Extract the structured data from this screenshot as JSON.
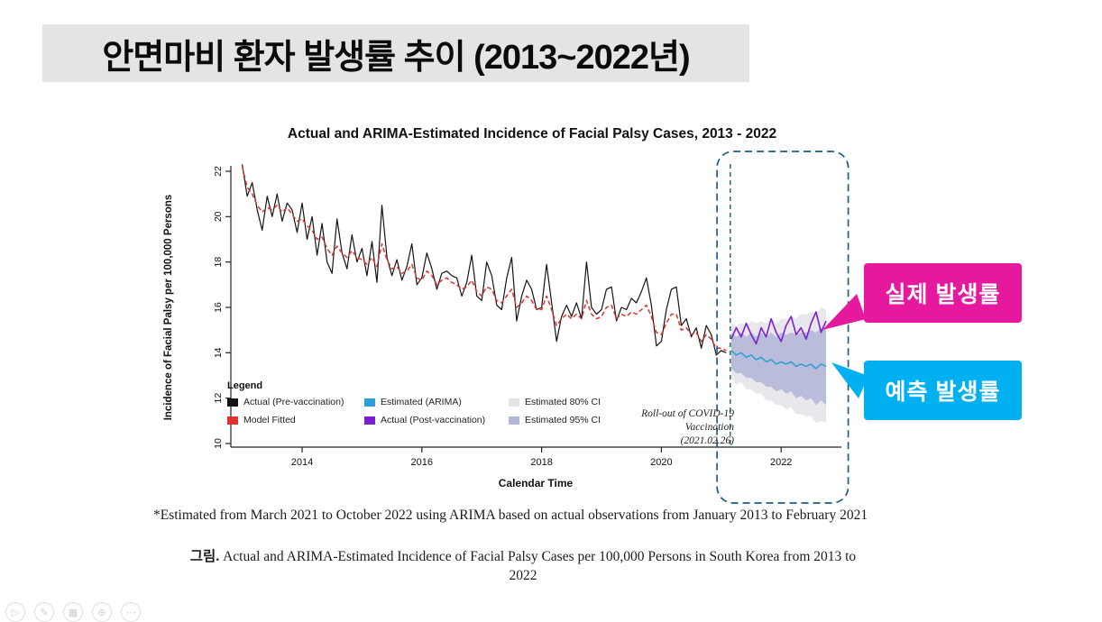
{
  "slide": {
    "title": "안면마비 환자 발생률 추이 (2013~2022년)"
  },
  "callouts": {
    "actual": {
      "label": "실제 발생률",
      "color": "#e6199e"
    },
    "predicted": {
      "label": "예측 발생률",
      "color": "#00b0f0"
    }
  },
  "chart_data": {
    "type": "line",
    "title": "Actual and ARIMA-Estimated Incidence of Facial Palsy Cases, 2013 - 2022",
    "xlabel": "Calendar Time",
    "ylabel": "Incidence of Facial Palsy per 100,000 Persons",
    "xlim": [
      2012.9,
      2023.1
    ],
    "ylim": [
      10,
      22.5
    ],
    "xticks": [
      2014,
      2016,
      2018,
      2020,
      2022
    ],
    "yticks": [
      10,
      12,
      14,
      16,
      18,
      20,
      22
    ],
    "legend_title": "Legend",
    "vline_x": 2021.15,
    "highlight_box": {
      "x_start": 2021.05,
      "x_end": 2023.0
    },
    "annotation": "Roll-out of COVID-19\nVaccination\n(2021.02.26)",
    "series": [
      {
        "name": "Actual (Pre-vaccination)",
        "color": "#141414",
        "style": "solid",
        "width": 1.2,
        "x_start": 2013.0,
        "x_step": 0.0833333,
        "values": [
          22.3,
          20.9,
          21.5,
          20.3,
          19.4,
          20.9,
          20.0,
          21.0,
          19.8,
          20.6,
          20.3,
          19.3,
          20.6,
          19.0,
          20.0,
          18.3,
          19.7,
          18.0,
          17.5,
          19.9,
          18.4,
          17.7,
          19.2,
          18.0,
          18.6,
          17.4,
          18.9,
          17.1,
          20.5,
          18.2,
          17.4,
          18.1,
          17.2,
          17.8,
          18.8,
          17.0,
          17.3,
          18.4,
          17.7,
          16.8,
          17.5,
          17.6,
          17.4,
          17.3,
          16.5,
          17.1,
          18.3,
          16.5,
          16.3,
          18.0,
          17.4,
          16.1,
          15.9,
          17.3,
          18.2,
          15.4,
          16.5,
          17.2,
          16.8,
          15.9,
          16.0,
          17.9,
          16.2,
          14.5,
          15.6,
          16.1,
          15.6,
          16.2,
          15.5,
          18.0,
          16.0,
          15.7,
          15.9,
          16.8,
          16.9,
          15.4,
          16.0,
          15.9,
          16.4,
          16.2,
          16.7,
          17.3,
          16.1,
          14.3,
          14.5,
          15.9,
          16.8,
          16.9,
          15.2,
          15.5,
          14.7,
          15.1,
          14.2,
          15.2,
          14.8,
          13.9,
          14.1,
          14.0
        ]
      },
      {
        "name": "Model Fitted",
        "color": "#e03131",
        "style": "dashed",
        "width": 1.5,
        "x_start": 2013.0,
        "x_step": 0.0833333,
        "values": [
          22.2,
          21.3,
          21.0,
          20.5,
          20.2,
          20.4,
          20.3,
          20.5,
          20.2,
          20.4,
          20.1,
          19.8,
          19.9,
          19.6,
          19.4,
          19.0,
          19.1,
          18.6,
          18.3,
          18.7,
          18.4,
          18.2,
          18.5,
          18.2,
          18.1,
          17.9,
          18.2,
          17.8,
          18.8,
          18.1,
          17.7,
          17.8,
          17.5,
          17.6,
          17.9,
          17.3,
          17.2,
          17.6,
          17.4,
          17.0,
          17.2,
          17.3,
          17.1,
          17.0,
          16.8,
          16.9,
          17.2,
          16.7,
          16.5,
          16.9,
          16.8,
          16.3,
          16.2,
          16.5,
          16.8,
          16.0,
          16.2,
          16.5,
          16.3,
          15.9,
          15.9,
          16.5,
          15.9,
          15.2,
          15.5,
          15.7,
          15.5,
          15.7,
          15.5,
          16.3,
          15.7,
          15.5,
          15.6,
          16.0,
          16.1,
          15.5,
          15.7,
          15.6,
          15.8,
          15.7,
          15.9,
          16.1,
          15.6,
          14.9,
          14.8,
          15.3,
          15.7,
          15.7,
          15.0,
          15.1,
          14.8,
          14.9,
          14.5,
          14.8,
          14.6,
          14.2,
          14.2,
          14.1
        ]
      },
      {
        "name": "Estimated (ARIMA)",
        "color": "#2b9fd8",
        "style": "solid",
        "width": 1.5,
        "x_start": 2021.1667,
        "x_step": 0.0833333,
        "values": [
          14.1,
          13.9,
          14.0,
          13.8,
          13.9,
          13.7,
          13.8,
          13.6,
          13.7,
          13.5,
          13.6,
          13.5,
          13.6,
          13.4,
          13.5,
          13.4,
          13.5,
          13.3,
          13.5,
          13.4
        ]
      },
      {
        "name": "Actual (Post-vaccination)",
        "color": "#7d1fd1",
        "style": "solid",
        "width": 1.6,
        "x_start": 2021.1667,
        "x_step": 0.0833333,
        "values": [
          14.6,
          15.1,
          14.7,
          15.3,
          14.8,
          14.4,
          15.1,
          14.7,
          15.5,
          14.9,
          14.5,
          15.2,
          15.6,
          14.8,
          15.1,
          14.6,
          15.3,
          15.8,
          14.9,
          15.4
        ]
      }
    ],
    "bands": [
      {
        "name": "Estimated 80% CI",
        "color": "#e6e6ea",
        "x_start": 2021.1667,
        "x_step": 0.0833333,
        "upper": [
          15.3,
          15.2,
          15.3,
          15.2,
          15.4,
          15.3,
          15.4,
          15.3,
          15.5,
          15.3,
          15.5,
          15.5,
          15.6,
          15.5,
          15.7,
          15.7,
          15.8,
          15.7,
          16.0,
          15.9
        ],
        "lower": [
          12.9,
          12.6,
          12.7,
          12.4,
          12.4,
          12.2,
          12.2,
          11.9,
          11.9,
          11.7,
          11.7,
          11.5,
          11.6,
          11.3,
          11.3,
          11.2,
          11.2,
          10.9,
          11.0,
          10.9
        ]
      },
      {
        "name": "Estimated 95% CI",
        "color": "#b4b8d8",
        "x_start": 2021.1667,
        "x_step": 0.0833333,
        "upper": [
          14.9,
          14.7,
          14.9,
          14.7,
          14.9,
          14.7,
          14.9,
          14.7,
          14.9,
          14.7,
          14.9,
          14.8,
          14.9,
          14.8,
          14.9,
          14.9,
          15.0,
          14.9,
          15.1,
          15.1
        ],
        "lower": [
          13.3,
          13.1,
          13.1,
          12.9,
          12.9,
          12.7,
          12.7,
          12.5,
          12.5,
          12.3,
          12.4,
          12.2,
          12.3,
          12.0,
          12.1,
          11.9,
          12.0,
          11.7,
          11.9,
          11.7
        ]
      }
    ],
    "legend": [
      {
        "label": "Actual (Pre-vaccination)",
        "color": "#141414"
      },
      {
        "label": "Estimated (ARIMA)",
        "color": "#2b9fd8"
      },
      {
        "label": "Estimated 80% CI",
        "color": "#e4e4e8"
      },
      {
        "label": "Model Fitted",
        "color": "#e03131"
      },
      {
        "label": "Actual (Post-vaccination)",
        "color": "#7d1fd1"
      },
      {
        "label": "Estimated 95% CI",
        "color": "#b4b8d8"
      }
    ]
  },
  "footnote": "*Estimated from March 2021 to October 2022 using ARIMA based on actual observations from January 2013 to February 2021",
  "caption": {
    "label": "그림.",
    "text": "Actual and ARIMA-Estimated Incidence of Facial Palsy Cases per 100,000 Persons in South Korea from 2013 to 2022"
  },
  "toolbar": {
    "buttons": [
      {
        "glyph": "▷"
      },
      {
        "glyph": "✎"
      },
      {
        "glyph": "▦"
      },
      {
        "glyph": "⊕"
      },
      {
        "glyph": "⋯"
      }
    ]
  }
}
